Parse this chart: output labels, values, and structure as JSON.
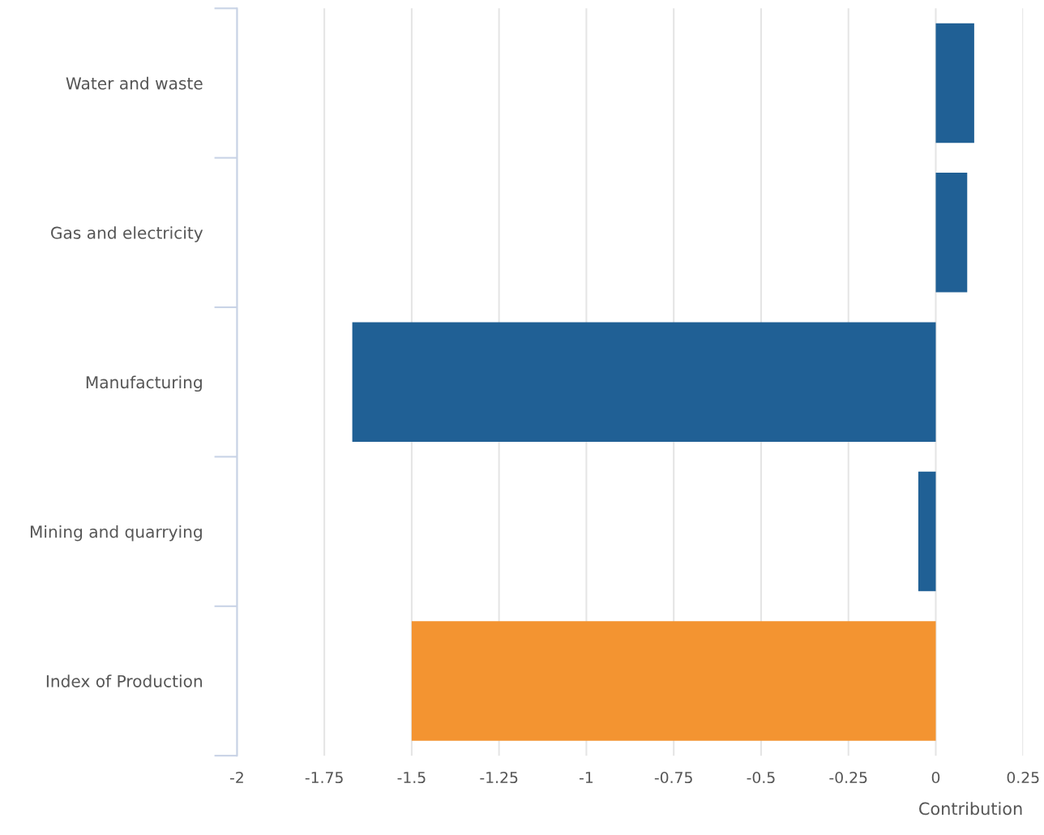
{
  "chart_data": {
    "type": "bar",
    "orientation": "horizontal",
    "xlabel": "Contribution",
    "categories": [
      "Water and waste",
      "Gas and electricity",
      "Manufacturing",
      "Mining and quarrying",
      "Index of Production"
    ],
    "values": [
      0.11,
      0.09,
      -1.67,
      -0.05,
      -1.5
    ],
    "colors": [
      "#206095",
      "#206095",
      "#206095",
      "#206095",
      "#f39431"
    ],
    "xlim": [
      -2,
      0.25
    ],
    "xticks": [
      -2,
      -1.75,
      -1.5,
      -1.25,
      -1,
      -0.75,
      -0.5,
      -0.25,
      0,
      0.25
    ],
    "grid": "x"
  }
}
